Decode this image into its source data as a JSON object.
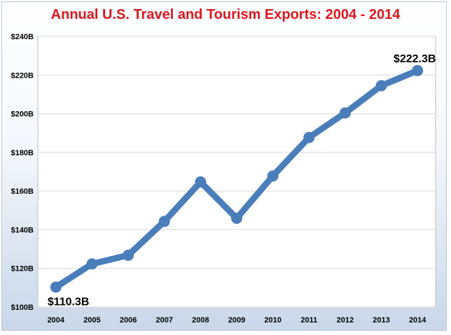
{
  "chart_data": {
    "type": "line",
    "title": "Annual U.S. Travel and Tourism Exports: 2004 - 2014",
    "xlabel": "",
    "ylabel": "",
    "categories": [
      "2004",
      "2005",
      "2006",
      "2007",
      "2008",
      "2009",
      "2010",
      "2011",
      "2012",
      "2013",
      "2014"
    ],
    "series": [
      {
        "values": [
          110.3,
          122.3,
          126.8,
          144.3,
          164.7,
          145.9,
          167.8,
          187.7,
          200.4,
          214.5,
          222.3
        ],
        "color": "#4a7ebb"
      }
    ],
    "ylim": [
      100,
      240
    ],
    "yticks": [
      {
        "value": 100,
        "label": "$100B"
      },
      {
        "value": 120,
        "label": "$120B"
      },
      {
        "value": 140,
        "label": "$140B"
      },
      {
        "value": 160,
        "label": "$160B"
      },
      {
        "value": 180,
        "label": "$180B"
      },
      {
        "value": 200,
        "label": "$200B"
      },
      {
        "value": 220,
        "label": "$220B"
      },
      {
        "value": 240,
        "label": "$240B"
      }
    ],
    "annotations": [
      {
        "index": 0,
        "label": "$110.3B"
      },
      {
        "index": 10,
        "label": "$222.3B"
      }
    ],
    "grid": true,
    "legend": "none",
    "title_color": "#e0161e",
    "grid_color": "#d9d9d9"
  }
}
